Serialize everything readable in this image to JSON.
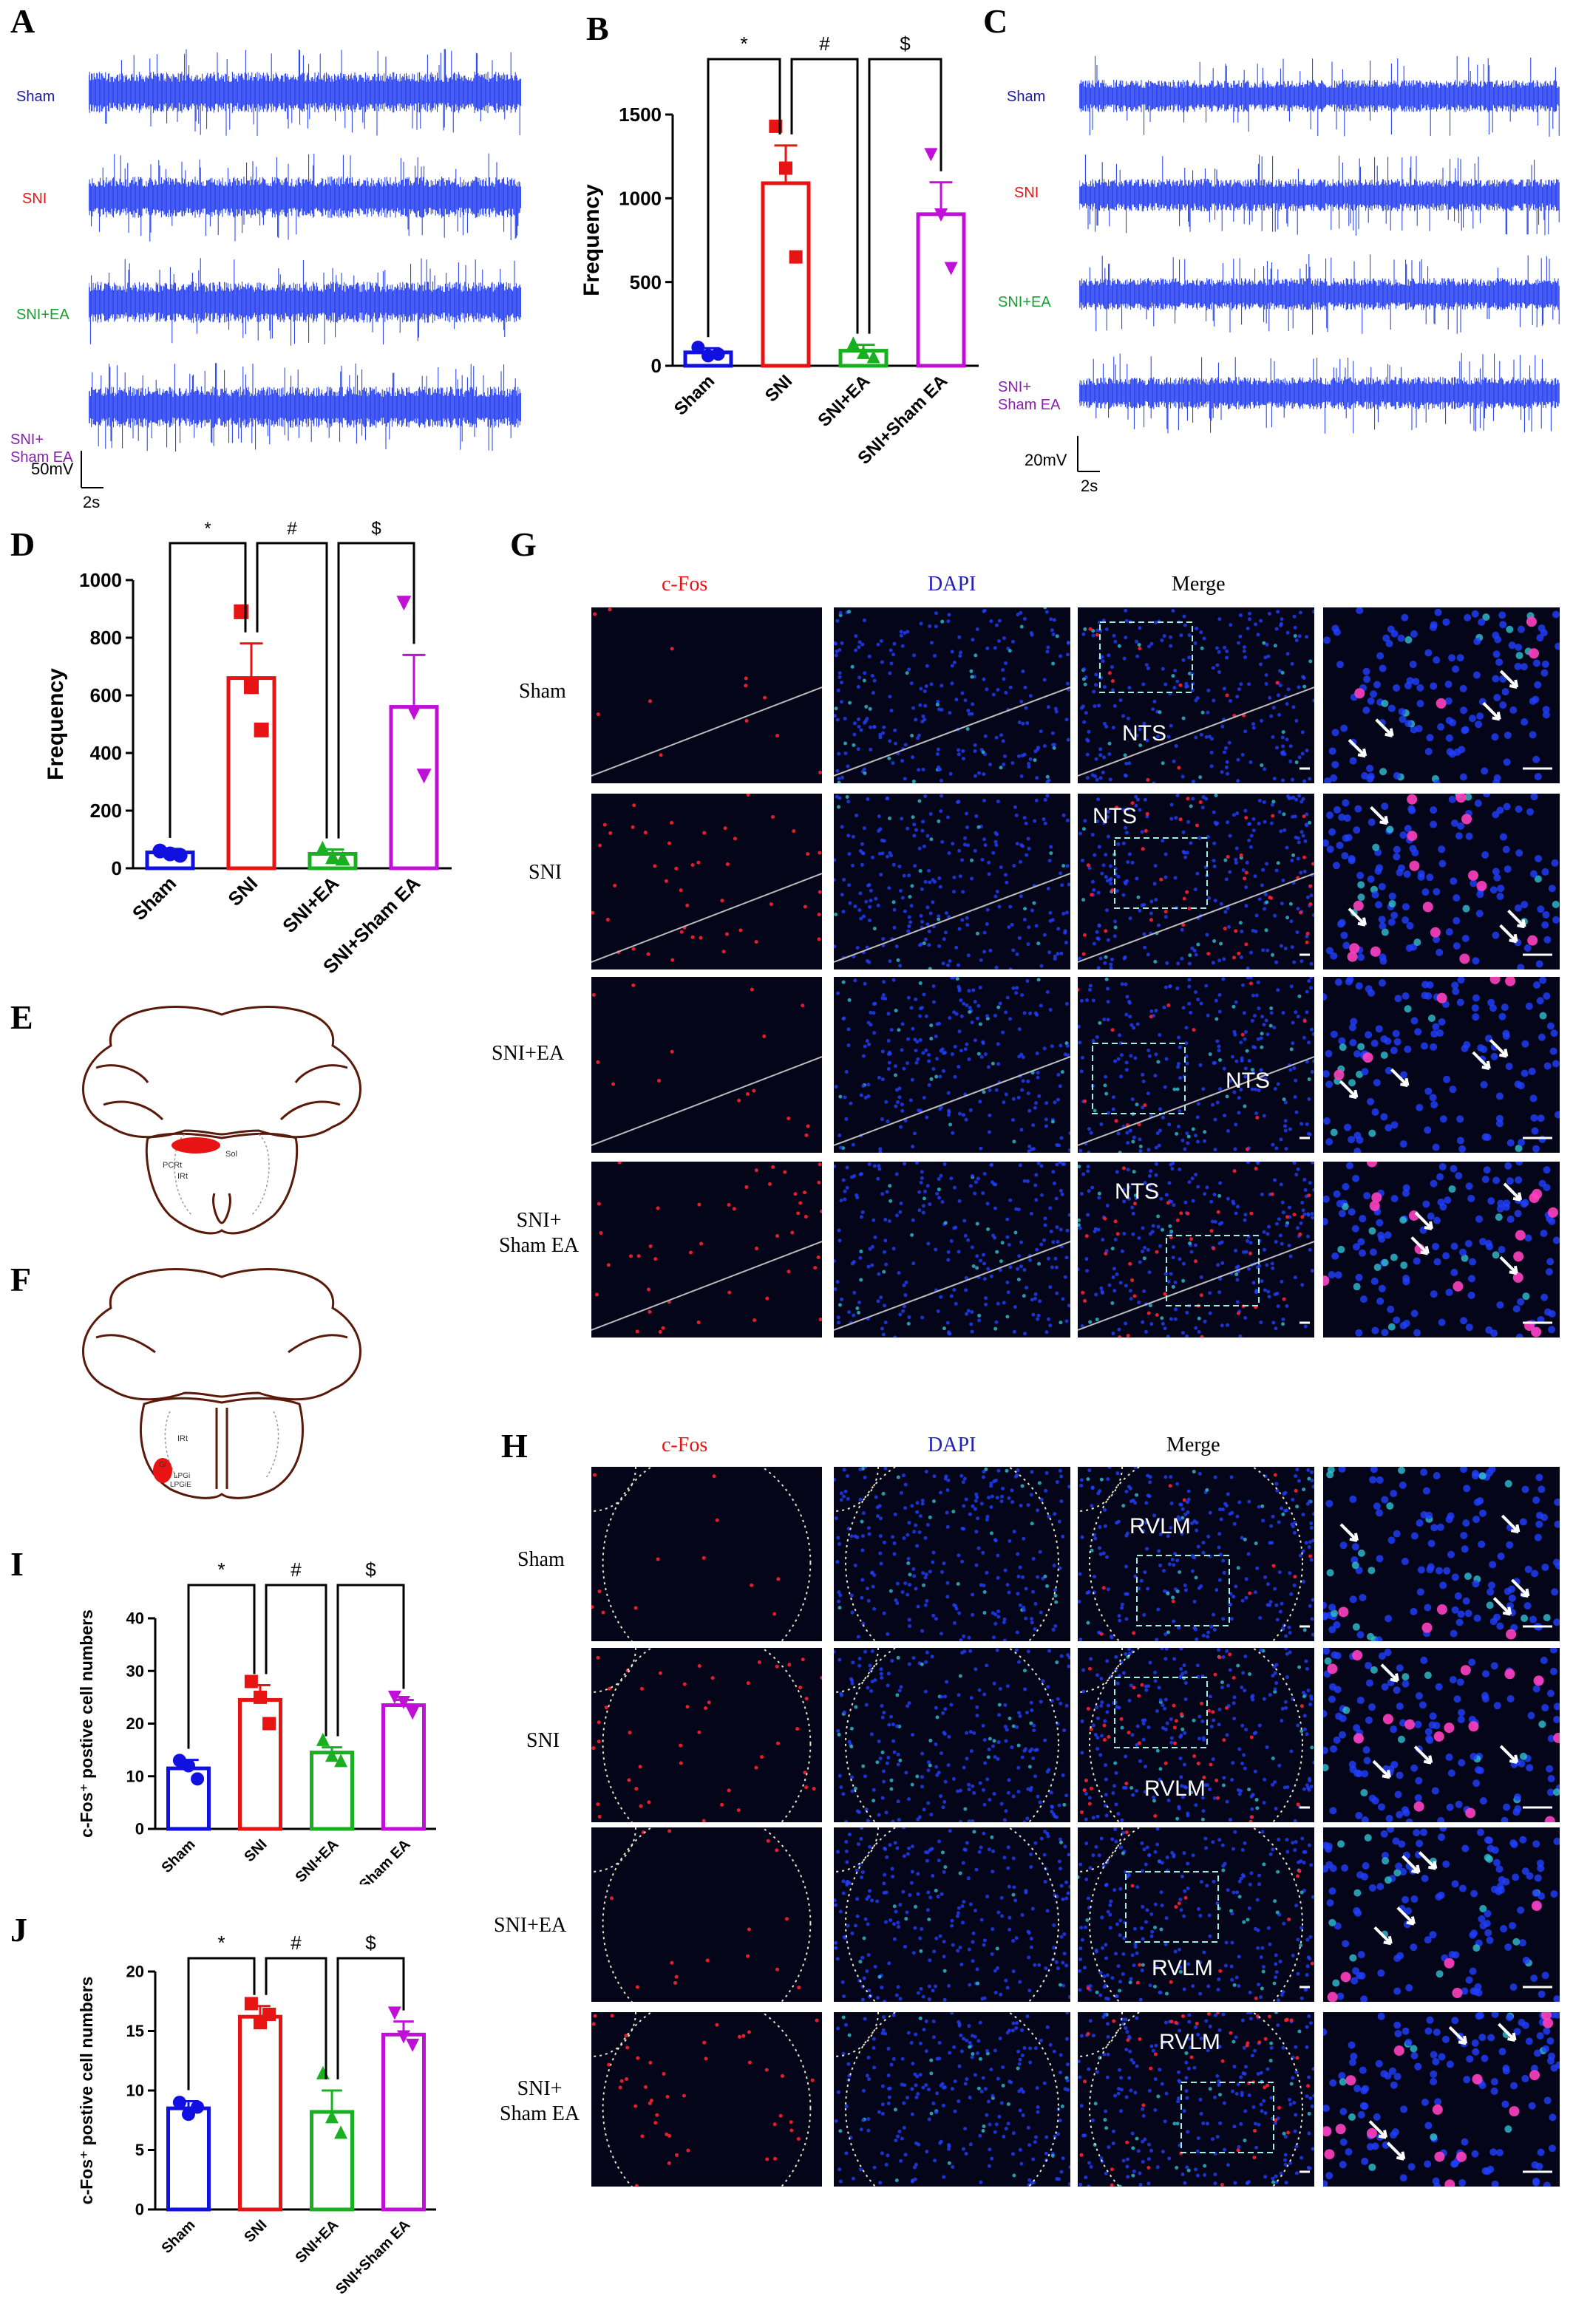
{
  "panel_labels": {
    "A": "A",
    "B": "B",
    "C": "C",
    "D": "D",
    "E": "E",
    "F": "F",
    "G": "G",
    "H": "H",
    "I": "I",
    "J": "J"
  },
  "colors": {
    "sham": "#1010e0",
    "sni": "#e81414",
    "sni_ea": "#18b020",
    "sni_sham_ea": "#c010d8",
    "trace": "#1a35f0",
    "caption_sham": "#1a1aa8",
    "caption_sni": "#e81414",
    "caption_ea": "#18a030",
    "caption_sham_ea": "#8a20b0"
  },
  "panel_a": {
    "group_labels": [
      "Sham",
      "SNI",
      "SNI+EA",
      "SNI+\nSham EA"
    ],
    "scale_v": "50mV",
    "scale_t": "2s"
  },
  "panel_c": {
    "group_labels": [
      "Sham",
      "SNI",
      "SNI+EA",
      "SNI+\nSham EA"
    ],
    "scale_v": "20mV",
    "scale_t": "2s"
  },
  "panel_g": {
    "column_headers": [
      "c-Fos",
      "DAPI",
      "Merge"
    ],
    "row_labels": [
      "Sham",
      "SNI",
      "SNI+EA",
      "SNI+\nSham EA"
    ],
    "region": "NTS"
  },
  "panel_h": {
    "column_headers": [
      "c-Fos",
      "DAPI",
      "Merge"
    ],
    "row_labels": [
      "Sham",
      "SNI",
      "SNI+EA",
      "SNI+\nSham EA"
    ],
    "region": "RVLM"
  },
  "panel_e_labels": [
    "PCRt",
    "IRt",
    "Sol"
  ],
  "panel_f_labels": [
    "IRt",
    "Gi",
    "LPGi",
    "LPGiE"
  ],
  "chart_data": [
    {
      "id": "B",
      "type": "bar",
      "categories": [
        "Sham",
        "SNI",
        "SNI+EA",
        "SNI+Sham EA"
      ],
      "values": [
        80,
        1090,
        90,
        905
      ],
      "sem": [
        25,
        225,
        35,
        190
      ],
      "points": [
        [
          110,
          60,
          70
        ],
        [
          1430,
          1180,
          650
        ],
        [
          135,
          80,
          55
        ],
        [
          1260,
          900,
          580
        ]
      ],
      "ylabel": "Frequency",
      "ylim": [
        0,
        1500
      ],
      "yticks": [
        0,
        500,
        1000,
        1500
      ],
      "significance": [
        "*",
        "#",
        "$"
      ]
    },
    {
      "id": "D",
      "type": "bar",
      "categories": [
        "Sham",
        "SNI",
        "SNI+EA",
        "SNI+Sham EA"
      ],
      "values": [
        55,
        660,
        50,
        560
      ],
      "sem": [
        12,
        120,
        15,
        180
      ],
      "points": [
        [
          60,
          50,
          45
        ],
        [
          890,
          630,
          480
        ],
        [
          70,
          40,
          35
        ],
        [
          920,
          540,
          320
        ]
      ],
      "ylabel": "Frequency",
      "ylim": [
        0,
        1000
      ],
      "yticks": [
        0,
        200,
        400,
        600,
        800,
        1000
      ],
      "significance": [
        "*",
        "#",
        "$"
      ]
    },
    {
      "id": "I",
      "type": "bar",
      "categories": [
        "Sham",
        "SNI",
        "SNI+EA",
        "SNI+Sham EA"
      ],
      "values": [
        11.5,
        24.5,
        14.5,
        23.5
      ],
      "sem": [
        1.6,
        2.8,
        1.0,
        1.0
      ],
      "points": [
        [
          13,
          12,
          9.5
        ],
        [
          28,
          25,
          20
        ],
        [
          17,
          14,
          13
        ],
        [
          25,
          24,
          22
        ]
      ],
      "ylabel": "c-Fos⁺ postive cell numbers",
      "ylim": [
        0,
        40
      ],
      "yticks": [
        0,
        10,
        20,
        30,
        40
      ],
      "significance": [
        "*",
        "#",
        "$"
      ]
    },
    {
      "id": "J",
      "type": "bar",
      "categories": [
        "Sham",
        "SNI",
        "SNI+EA",
        "SNI+Sham EA"
      ],
      "values": [
        8.5,
        16.2,
        8.2,
        14.7
      ],
      "sem": [
        0.6,
        0.9,
        1.8,
        1.1
      ],
      "points": [
        [
          9,
          8,
          8.6
        ],
        [
          17.3,
          15.7,
          16.4
        ],
        [
          11.5,
          7.8,
          6.5
        ],
        [
          16.5,
          14.5,
          13.8
        ]
      ],
      "ylabel": "c-Fos⁺ postive cell numbers",
      "ylim": [
        0,
        20
      ],
      "yticks": [
        0,
        5,
        10,
        15,
        20
      ],
      "significance": [
        "*",
        "#",
        "$"
      ]
    }
  ]
}
